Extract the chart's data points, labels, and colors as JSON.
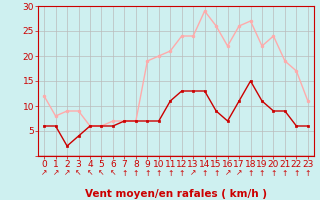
{
  "hours": [
    0,
    1,
    2,
    3,
    4,
    5,
    6,
    7,
    8,
    9,
    10,
    11,
    12,
    13,
    14,
    15,
    16,
    17,
    18,
    19,
    20,
    21,
    22,
    23
  ],
  "avg_wind": [
    6,
    6,
    2,
    4,
    6,
    6,
    6,
    7,
    7,
    7,
    7,
    11,
    13,
    13,
    13,
    9,
    7,
    11,
    15,
    11,
    9,
    9,
    6,
    6
  ],
  "gusts": [
    12,
    8,
    9,
    9,
    6,
    6,
    7,
    7,
    7,
    19,
    20,
    21,
    24,
    24,
    29,
    26,
    22,
    26,
    27,
    22,
    24,
    19,
    17,
    11
  ],
  "avg_color": "#cc0000",
  "gust_color": "#ffaaaa",
  "bg_color": "#cef0f0",
  "grid_color": "#bbbbbb",
  "xlabel": "Vent moyen/en rafales ( km/h )",
  "ylim": [
    0,
    30
  ],
  "yticks": [
    0,
    5,
    10,
    15,
    20,
    25,
    30
  ],
  "tick_fontsize": 6.5,
  "xlabel_fontsize": 7.5,
  "wind_arrows": [
    "↗",
    "↗",
    "↗",
    "↖",
    "↖",
    "↖",
    "↖",
    "↑",
    "↑",
    "↑",
    "↑",
    "↑",
    "↑",
    "↗",
    "↑",
    "↑",
    "↗",
    "↗",
    "↑",
    "↑",
    "↑",
    "↑",
    "↑",
    "↑"
  ]
}
